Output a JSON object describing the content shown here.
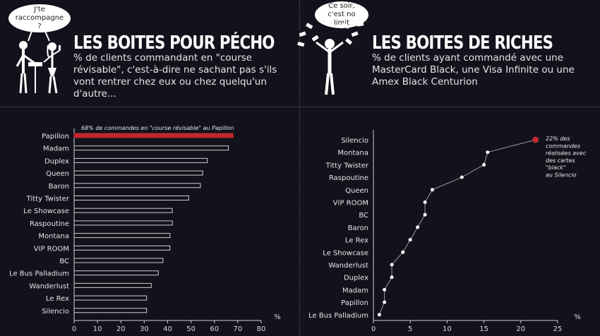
{
  "left": {
    "bubble": "J'te raccompagne ?",
    "title": "LES BOITES POUR PÉCHO",
    "subtitle": "% de clients commandant en \"course révisable\", c'est-à-dire ne sachant pas s'ils vont rentrer chez eux ou chez quelqu'un d'autre..."
  },
  "right": {
    "bubble": "Ce soir, c'est no limit",
    "title": "LES BOITES DE RICHES",
    "subtitle": "% de clients ayant commandé avec une MasterCard Black, une Visa Infinite ou une Amex Black Centurion"
  },
  "colors": {
    "background": "#12121c",
    "highlight": "#c0282d",
    "bar_outline": "#cfcfcf"
  },
  "chart_data": [
    {
      "type": "bar",
      "orientation": "horizontal",
      "categories": [
        "Papillon",
        "Madam",
        "Duplex",
        "Queen",
        "Baron",
        "Titty Twister",
        "Le Showcase",
        "Raspoutine",
        "Montana",
        "VIP ROOM",
        "BC",
        "Le Bus Palladium",
        "Wanderlust",
        "Le Rex",
        "Silencio"
      ],
      "values": [
        68,
        66,
        57,
        55,
        54,
        49,
        42,
        42,
        41,
        41,
        38,
        36,
        33,
        31,
        31
      ],
      "xlim": [
        0,
        80
      ],
      "xticks": [
        0,
        10,
        20,
        30,
        40,
        50,
        60,
        70,
        80
      ],
      "xlabel": "%",
      "annotation": "68% de commandes en \"course révisable\" au Papillon",
      "highlight_index": 0
    },
    {
      "type": "line",
      "orientation": "horizontal",
      "categories": [
        "Silencio",
        "Montana",
        "Titty Twister",
        "Raspoutine",
        "Queen",
        "VIP ROOM",
        "BC",
        "Baron",
        "Le Rex",
        "Le Showcase",
        "Wanderlust",
        "Duplex",
        "Madam",
        "Papillon",
        "Le Bus Palladium"
      ],
      "values": [
        22,
        15.5,
        15,
        12,
        8,
        7,
        7,
        6,
        5,
        4,
        2.5,
        2.5,
        1.5,
        1.5,
        0.8
      ],
      "xlim": [
        0,
        25
      ],
      "xticks": [
        0,
        5,
        10,
        15,
        20,
        25
      ],
      "xlabel": "%",
      "annotation": [
        "22% des",
        "commandes",
        "réalisées avec",
        "des cartes",
        "\"black\"",
        "au Silencio"
      ],
      "highlight_index": 0
    }
  ]
}
